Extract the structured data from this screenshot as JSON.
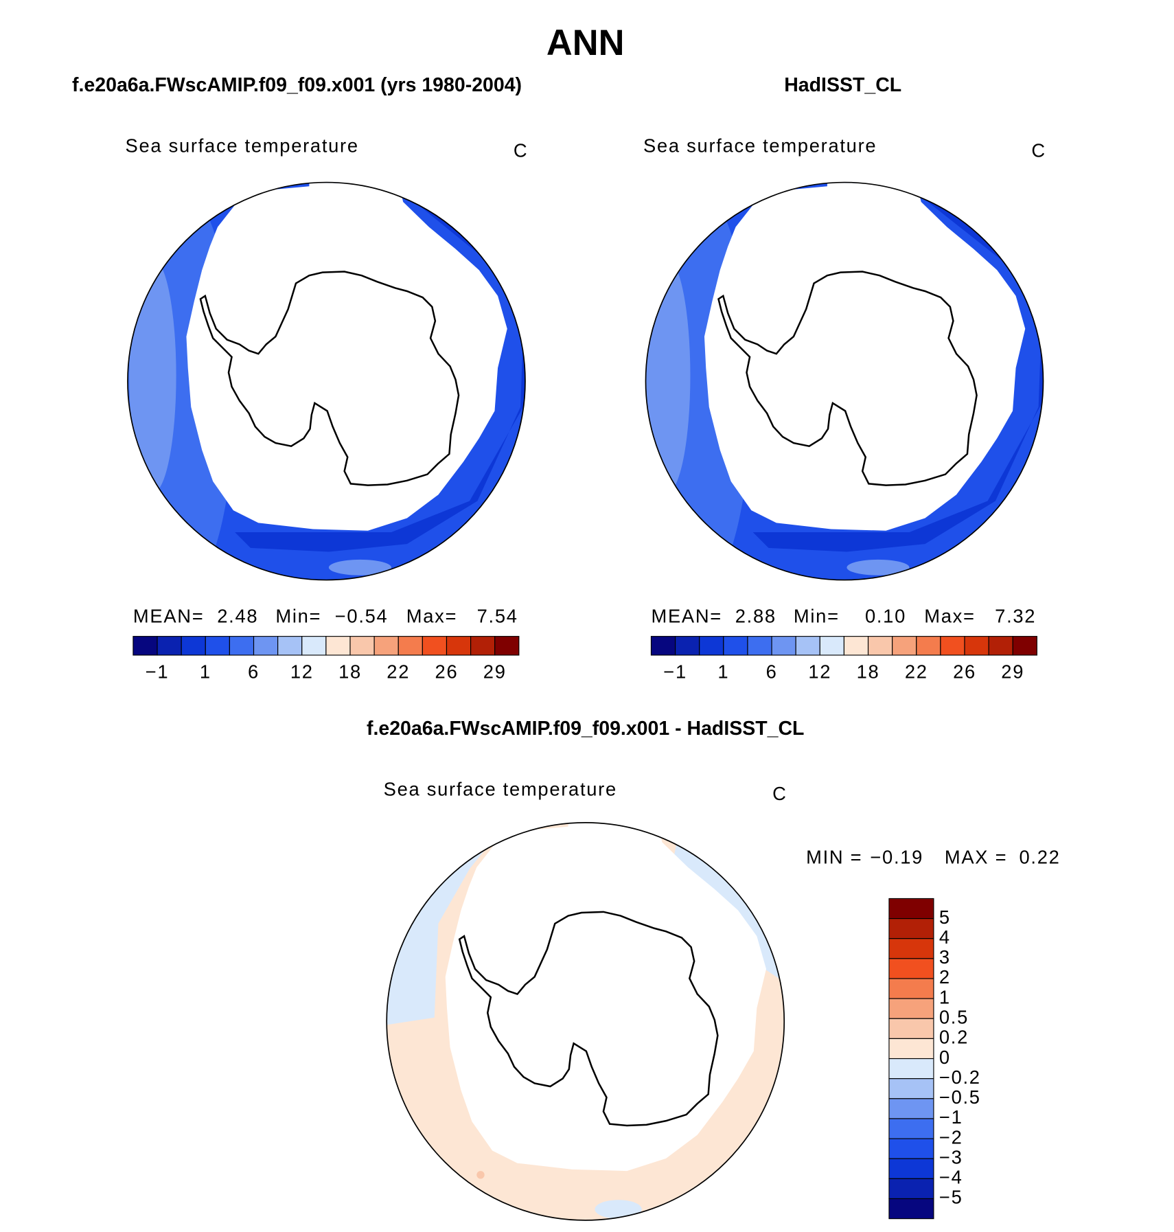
{
  "title": "ANN",
  "palette": [
    "#06067f",
    "#0a22b0",
    "#0d37d6",
    "#1f50ea",
    "#3d6ef0",
    "#6e95f2",
    "#a6c2f6",
    "#d9e9fb",
    "#fde6d4",
    "#f9c7ab",
    "#f6a27b",
    "#f47c4d",
    "#f1501f",
    "#d7360b",
    "#b22006",
    "#7f0000"
  ],
  "panels": [
    {
      "title": "f.e20a6a.FWscAMIP.f09_f09.x001 (yrs 1980-2004)",
      "variable": "Sea surface temperature",
      "units": "C",
      "stats": [
        {
          "label": "MEAN=",
          "value": "2.48"
        },
        {
          "label": "Min=",
          "value": "−0.54"
        },
        {
          "label": "Max=",
          "value": "7.54"
        }
      ],
      "colorbar_labels": [
        "−1",
        "1",
        "6",
        "12",
        "18",
        "22",
        "26",
        "29"
      ]
    },
    {
      "title": "HadISST_CL",
      "variable": "Sea surface temperature",
      "units": "C",
      "stats": [
        {
          "label": "MEAN=",
          "value": "2.88"
        },
        {
          "label": "Min=",
          "value": "0.10"
        },
        {
          "label": "Max=",
          "value": "7.32"
        }
      ],
      "colorbar_labels": [
        "−1",
        "1",
        "6",
        "12",
        "18",
        "22",
        "26",
        "29"
      ]
    }
  ],
  "difference": {
    "title": "f.e20a6a.FWscAMIP.f09_f09.x001 - HadISST_CL",
    "variable": "Sea surface temperature",
    "units": "C",
    "stats": [
      {
        "label": "MIN =",
        "value": "−0.19"
      },
      {
        "label": "MAX =",
        "value": "0.22"
      }
    ],
    "colorbar_labels": [
      "5",
      "4",
      "3",
      "2",
      "1",
      "0.5",
      "0.2",
      "0",
      "−0.2",
      "−0.5",
      "−1",
      "−2",
      "−3",
      "−4",
      "−5"
    ]
  }
}
